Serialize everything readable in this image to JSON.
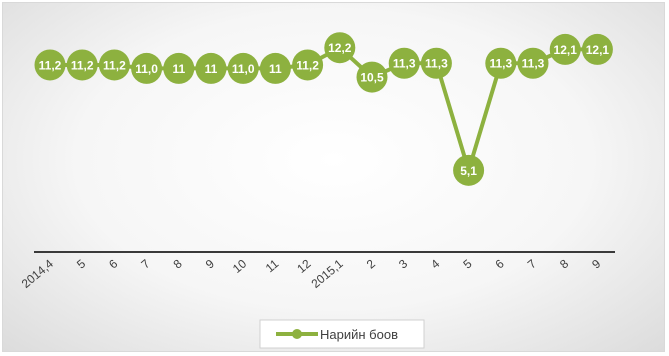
{
  "chart_data": {
    "type": "line",
    "title": "",
    "xlabel": "",
    "ylabel": "",
    "categories": [
      "2014,4",
      "5",
      "6",
      "7",
      "8",
      "9",
      "10",
      "11",
      "12",
      "2015,1",
      "2",
      "3",
      "4",
      "5",
      "6",
      "7",
      "8",
      "9"
    ],
    "series": [
      {
        "name": "Нарийн боов",
        "values": [
          11.2,
          11.2,
          11.2,
          11.0,
          11,
          11,
          11.0,
          11,
          11.2,
          12.2,
          10.5,
          11.3,
          11.3,
          5.1,
          11.3,
          11.3,
          12.1,
          12.1
        ],
        "data_labels": [
          "11,2",
          "11,2",
          "11,2",
          "11,0",
          "11",
          "11",
          "11,0",
          "11",
          "11,2",
          "12,2",
          "10,5",
          "11,3",
          "11,3",
          "5,1",
          "11,3",
          "11,3",
          "12,1",
          "12,1"
        ],
        "color": "#8db13f",
        "label_color": "#ffffff"
      }
    ],
    "grid": false,
    "legend_position": "bottom",
    "axis_color": "#3a3a3a",
    "tick_label_color": "#404040"
  }
}
